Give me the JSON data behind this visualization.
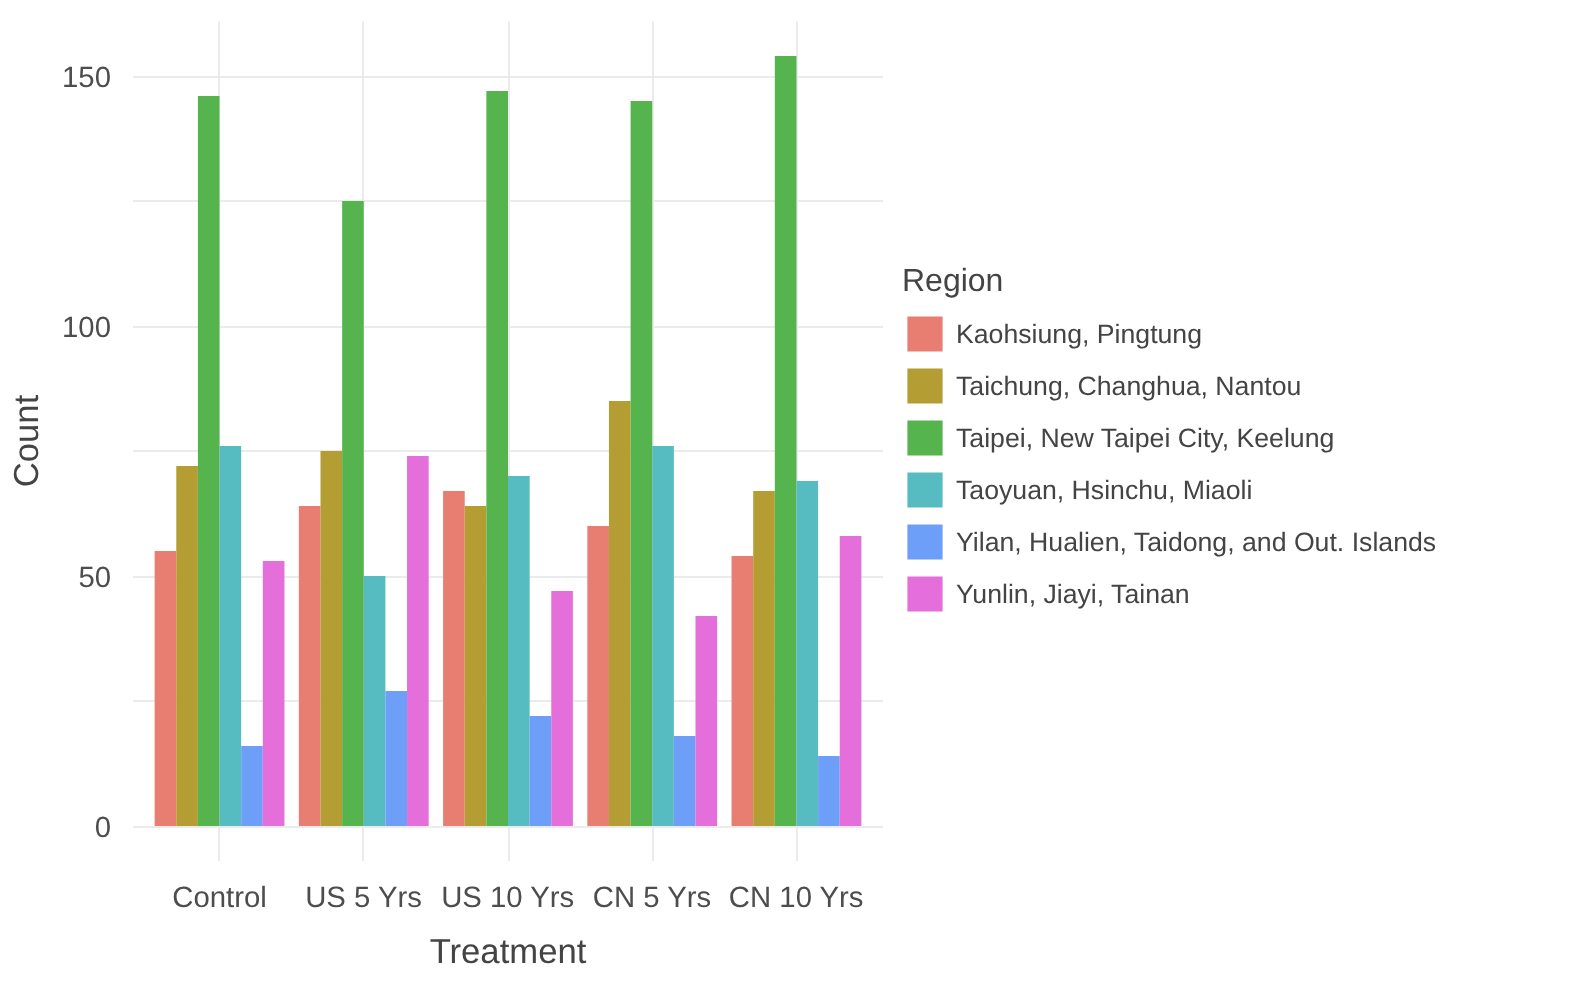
{
  "chart_data": {
    "type": "bar",
    "xlabel": "Treatment",
    "ylabel": "Count",
    "legend_title": "Region",
    "categories": [
      "Control",
      "US 5 Yrs",
      "US 10 Yrs",
      "CN 5 Yrs",
      "CN 10 Yrs"
    ],
    "series": [
      {
        "name": "Kaohsiung, Pingtung",
        "color": "#e87d72",
        "values": [
          55,
          64,
          67,
          60,
          54
        ]
      },
      {
        "name": "Taichung, Changhua, Nantou",
        "color": "#b49e33",
        "values": [
          72,
          75,
          64,
          85,
          67
        ]
      },
      {
        "name": "Taipei, New Taipei City, Keelung",
        "color": "#56b44e",
        "values": [
          146,
          125,
          147,
          145,
          154
        ]
      },
      {
        "name": "Taoyuan, Hsinchu, Miaoli",
        "color": "#56bcc2",
        "values": [
          76,
          50,
          70,
          76,
          69
        ]
      },
      {
        "name": "Yilan, Hualien, Taidong, and Out. Islands",
        "color": "#6d9ef8",
        "values": [
          16,
          27,
          22,
          18,
          14
        ]
      },
      {
        "name": "Yunlin, Jiayi, Tainan",
        "color": "#e46fdb",
        "values": [
          53,
          74,
          47,
          42,
          58
        ]
      }
    ],
    "ylim": [
      -7,
      161
    ],
    "yticks": [
      0,
      {
        "value": 25,
        "label": null
      },
      50,
      {
        "value": 75,
        "label": null
      },
      100,
      {
        "value": 125,
        "label": null
      },
      150
    ],
    "grid": true,
    "legend": "right"
  }
}
